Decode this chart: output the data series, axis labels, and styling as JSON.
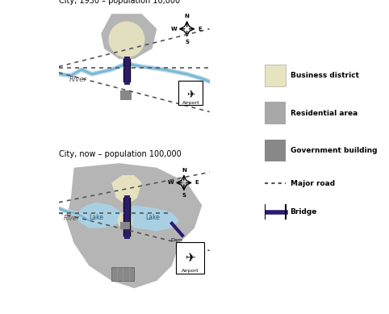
{
  "title_map1": "City, 1950 – population 10,000",
  "title_map2": "City, now – population 100,000",
  "bg_color": "#ffffff",
  "map_bg": "#f5f5f0",
  "residential_color": "#a8a8a8",
  "business_color": "#e8e4c0",
  "lake_color": "#a8d4e8",
  "river_color": "#b8d8e8",
  "gov_building_color": "#888888",
  "bridge_color": "#2d1a6e",
  "road_color": "#555555",
  "airport_box_color": "#ffffff",
  "legend_items": [
    {
      "label": "Business district",
      "color": "#e8e4c0"
    },
    {
      "label": "Residential area",
      "color": "#a8a8a8"
    },
    {
      "label": "Government building",
      "color": "#888888"
    },
    {
      "label": "Major road",
      "style": "dotted"
    },
    {
      "label": "Bridge",
      "color": "#2d1a6e"
    }
  ]
}
